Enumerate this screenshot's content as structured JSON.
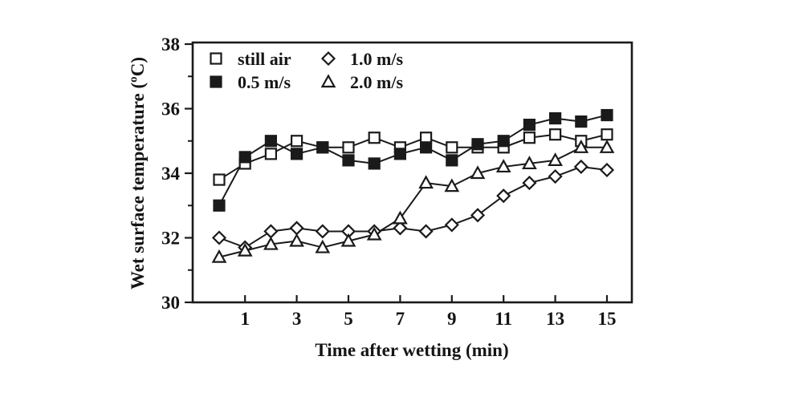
{
  "figure": {
    "background": "#ffffff",
    "ink_color": "#1a1a1a"
  },
  "chart_data": {
    "type": "line",
    "title": "",
    "xlabel": "Time after wetting (min)",
    "ylabel": "Wet surface temperature (ºC)",
    "xlim": [
      -1,
      16
    ],
    "ylim": [
      30,
      38
    ],
    "x_major_ticks": [
      1,
      3,
      5,
      7,
      9,
      11,
      13,
      15
    ],
    "y_major_ticks": [
      30,
      32,
      34,
      36,
      38
    ],
    "y_minor_ticks": [
      31,
      33,
      35,
      37
    ],
    "grid": false,
    "x": [
      0,
      1,
      2,
      3,
      4,
      5,
      6,
      7,
      8,
      9,
      10,
      11,
      12,
      13,
      14,
      15
    ],
    "series": [
      {
        "name": "still air",
        "marker": "square-open",
        "values": [
          33.8,
          34.3,
          34.6,
          35.0,
          34.8,
          34.8,
          35.1,
          34.8,
          35.1,
          34.8,
          34.8,
          34.8,
          35.1,
          35.2,
          35.0,
          35.2
        ]
      },
      {
        "name": "0.5 m/s",
        "marker": "square-filled",
        "values": [
          33.0,
          34.5,
          35.0,
          34.6,
          34.8,
          34.4,
          34.3,
          34.6,
          34.8,
          34.4,
          34.9,
          35.0,
          35.5,
          35.7,
          35.6,
          35.8
        ]
      },
      {
        "name": "1.0 m/s",
        "marker": "diamond-open",
        "values": [
          32.0,
          31.7,
          32.2,
          32.3,
          32.2,
          32.2,
          32.2,
          32.3,
          32.2,
          32.4,
          32.7,
          33.3,
          33.7,
          33.9,
          34.2,
          34.1
        ]
      },
      {
        "name": "2.0 m/s",
        "marker": "triangle-open",
        "values": [
          31.4,
          31.6,
          31.8,
          31.9,
          31.7,
          31.9,
          32.1,
          32.6,
          33.7,
          33.6,
          34.0,
          34.2,
          34.3,
          34.4,
          34.8,
          34.8
        ]
      }
    ],
    "legend": {
      "position": "top-left-inside",
      "rows": [
        [
          0,
          2
        ],
        [
          1,
          3
        ]
      ]
    }
  }
}
